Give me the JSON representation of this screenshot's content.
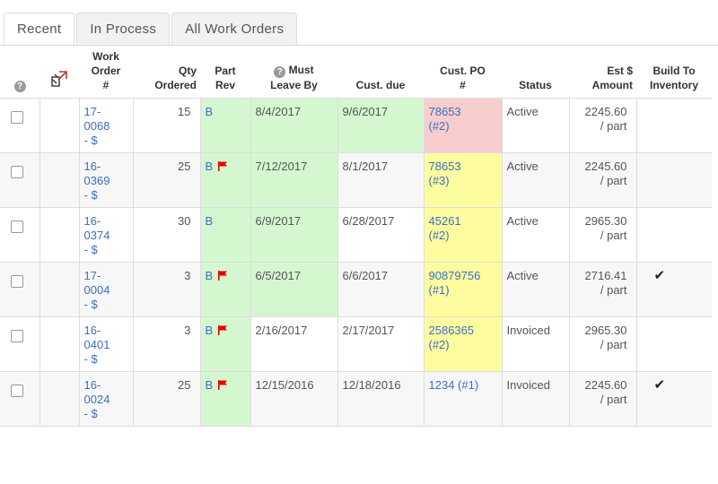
{
  "tabs": [
    {
      "label": "Recent",
      "active": true
    },
    {
      "label": "In Process",
      "active": false
    },
    {
      "label": "All Work Orders",
      "active": false
    }
  ],
  "table": {
    "headers": {
      "help_glyph": "?",
      "work_order": [
        "Work",
        "Order",
        "#"
      ],
      "qty": [
        "Qty",
        "Ordered"
      ],
      "part_rev": [
        "Part",
        "Rev"
      ],
      "must_leave": [
        "Must",
        "Leave By"
      ],
      "cust_due": "Cust. due",
      "cust_po": [
        "Cust. PO",
        "#"
      ],
      "status": "Status",
      "est": [
        "Est $",
        "Amount"
      ],
      "build": [
        "Build To",
        "Inventory"
      ]
    },
    "rows": [
      {
        "wo": [
          "17-",
          "0068"
        ],
        "wo_suffix": "- $",
        "qty": "15",
        "rev": "B",
        "flag": false,
        "leave": "8/4/2017",
        "leave_highlight": true,
        "due": "9/6/2017",
        "due_highlight": true,
        "po": [
          "78653",
          "(#2)"
        ],
        "po_color": "pink",
        "status": "Active",
        "est": [
          "2245.60",
          "/ part"
        ],
        "build": false
      },
      {
        "wo": [
          "16-",
          "0369"
        ],
        "wo_suffix": "- $",
        "qty": "25",
        "rev": "B",
        "flag": true,
        "leave": "7/12/2017",
        "leave_highlight": true,
        "due": "8/1/2017",
        "due_highlight": false,
        "po": [
          "78653",
          "(#3)"
        ],
        "po_color": "yellow",
        "status": "Active",
        "est": [
          "2245.60",
          "/ part"
        ],
        "build": false
      },
      {
        "wo": [
          "16-",
          "0374"
        ],
        "wo_suffix": "- $",
        "qty": "30",
        "rev": "B",
        "flag": false,
        "leave": "6/9/2017",
        "leave_highlight": true,
        "due": "6/28/2017",
        "due_highlight": false,
        "po": [
          "45261",
          "(#2)"
        ],
        "po_color": "yellow",
        "status": "Active",
        "est": [
          "2965.30",
          "/ part"
        ],
        "build": false
      },
      {
        "wo": [
          "17-",
          "0004"
        ],
        "wo_suffix": "- $",
        "qty": "3",
        "rev": "B",
        "flag": true,
        "leave": "6/5/2017",
        "leave_highlight": true,
        "due": "6/6/2017",
        "due_highlight": false,
        "po": [
          "90879756",
          "(#1)"
        ],
        "po_color": "yellow",
        "status": "Active",
        "est": [
          "2716.41",
          "/ part"
        ],
        "build": true
      },
      {
        "wo": [
          "16-",
          "0401"
        ],
        "wo_suffix": "- $",
        "qty": "3",
        "rev": "B",
        "flag": true,
        "leave": "2/16/2017",
        "leave_highlight": false,
        "due": "2/17/2017",
        "due_highlight": false,
        "po": [
          "2586365",
          "(#2)"
        ],
        "po_color": "yellow",
        "status": "Invoiced",
        "est": [
          "2965.30",
          "/ part"
        ],
        "build": false
      },
      {
        "wo": [
          "16-",
          "0024"
        ],
        "wo_suffix": "- $",
        "qty": "25",
        "rev": "B",
        "flag": true,
        "leave": "12/15/2016",
        "leave_highlight": false,
        "due": "12/18/2016",
        "due_highlight": false,
        "po": [
          "1234 (#1)"
        ],
        "po_color": "none",
        "status": "Invoiced",
        "est": [
          "2245.60",
          "/ part"
        ],
        "build": true
      }
    ],
    "check_glyph": "✔"
  },
  "colors": {
    "green": "#d4f7cf",
    "yellow": "#fdfda0",
    "pink": "#f8cdcd",
    "link": "#3b6fc4",
    "flag": "#e60000"
  },
  "icons": {
    "header_help": "help-circle-icon",
    "header_tools": "tools-icon",
    "flag": "red-flag-icon",
    "check": "checkmark-icon"
  }
}
